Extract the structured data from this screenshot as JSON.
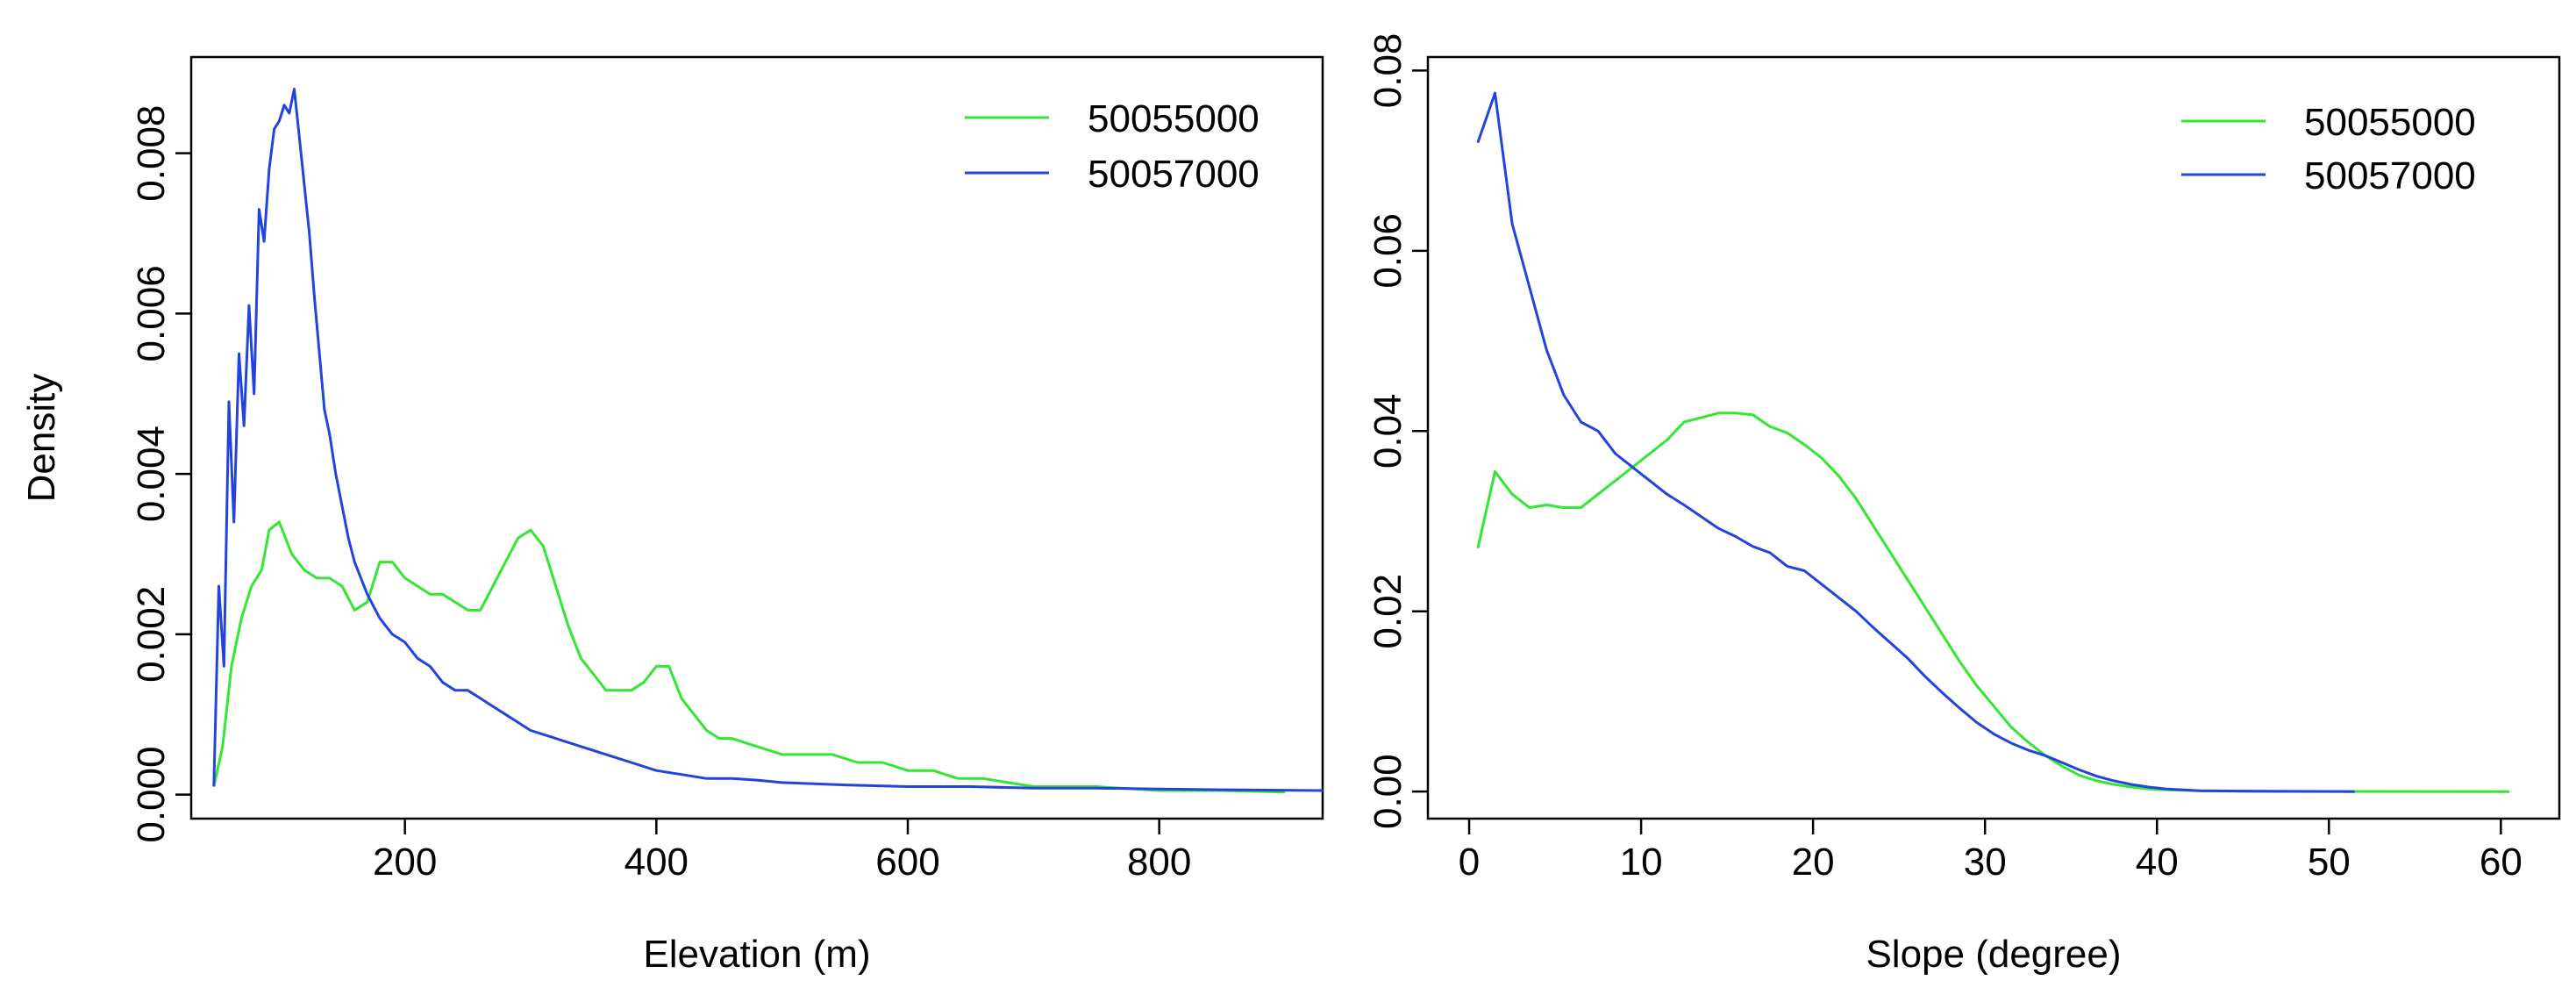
{
  "colors": {
    "green_series": "#33e633",
    "blue_series": "#2244dd",
    "axis": "#000000"
  },
  "chart_data": [
    {
      "type": "line",
      "title": "",
      "xlabel": "Elevation (m)",
      "ylabel": "Density",
      "xlim": [
        30,
        930
      ],
      "ylim": [
        -0.0003,
        0.0092
      ],
      "x_ticks": [
        200,
        400,
        600,
        800
      ],
      "x_tick_labels": [
        "200",
        "400",
        "600",
        "800"
      ],
      "y_ticks": [
        0,
        0.002,
        0.004,
        0.006,
        0.008
      ],
      "y_tick_labels": [
        "0.000",
        "0.002",
        "0.004",
        "0.006",
        "0.008"
      ],
      "legend_position": "top-right",
      "series": [
        {
          "name": "50055000",
          "color": "#33e633",
          "x": [
            48,
            55,
            62,
            70,
            78,
            86,
            92,
            100,
            110,
            120,
            130,
            140,
            150,
            160,
            170,
            180,
            190,
            200,
            210,
            220,
            230,
            240,
            250,
            260,
            270,
            280,
            290,
            300,
            310,
            320,
            330,
            340,
            350,
            360,
            370,
            380,
            390,
            400,
            410,
            420,
            430,
            440,
            450,
            460,
            480,
            500,
            520,
            540,
            560,
            580,
            600,
            620,
            640,
            660,
            680,
            700,
            720,
            750,
            800,
            850,
            900
          ],
          "y": [
            0.0001,
            0.0006,
            0.0016,
            0.0022,
            0.0026,
            0.0028,
            0.0033,
            0.0034,
            0.003,
            0.0028,
            0.0027,
            0.0027,
            0.0026,
            0.0023,
            0.0024,
            0.0029,
            0.0029,
            0.0027,
            0.0026,
            0.0025,
            0.0025,
            0.0024,
            0.0023,
            0.0023,
            0.0026,
            0.0029,
            0.0032,
            0.0033,
            0.0031,
            0.0026,
            0.0021,
            0.0017,
            0.0015,
            0.0013,
            0.0013,
            0.0013,
            0.0014,
            0.0016,
            0.0016,
            0.0012,
            0.001,
            0.0008,
            0.0007,
            0.0007,
            0.0006,
            0.0005,
            0.0005,
            0.0005,
            0.0004,
            0.0004,
            0.0003,
            0.0003,
            0.0002,
            0.0002,
            0.00015,
            0.0001,
            0.0001,
            0.0001,
            5e-05,
            5e-05,
            3e-05
          ]
        },
        {
          "name": "50057000",
          "color": "#2244dd",
          "x": [
            48,
            52,
            56,
            60,
            64,
            68,
            72,
            76,
            80,
            84,
            88,
            92,
            96,
            100,
            104,
            108,
            112,
            116,
            120,
            124,
            128,
            132,
            136,
            140,
            145,
            150,
            155,
            160,
            170,
            180,
            190,
            200,
            210,
            220,
            230,
            240,
            250,
            260,
            270,
            280,
            290,
            300,
            320,
            340,
            360,
            380,
            400,
            420,
            440,
            460,
            480,
            500,
            550,
            600,
            650,
            700,
            750,
            800,
            850,
            930
          ],
          "y": [
            0.0001,
            0.0026,
            0.0016,
            0.0049,
            0.0034,
            0.0055,
            0.0046,
            0.0061,
            0.005,
            0.0073,
            0.0069,
            0.0078,
            0.0083,
            0.0084,
            0.0086,
            0.0085,
            0.0088,
            0.0082,
            0.0076,
            0.007,
            0.0062,
            0.0055,
            0.0048,
            0.0045,
            0.004,
            0.0036,
            0.0032,
            0.0029,
            0.0025,
            0.0022,
            0.002,
            0.0019,
            0.0017,
            0.0016,
            0.0014,
            0.0013,
            0.0013,
            0.0012,
            0.0011,
            0.001,
            0.0009,
            0.0008,
            0.0007,
            0.0006,
            0.0005,
            0.0004,
            0.0003,
            0.00025,
            0.0002,
            0.0002,
            0.00018,
            0.00015,
            0.00012,
            0.0001,
            0.0001,
            8e-05,
            8e-05,
            7e-05,
            6e-05,
            5e-05
          ]
        }
      ]
    },
    {
      "type": "line",
      "title": "",
      "xlabel": "Slope (degree)",
      "ylabel": "",
      "xlim": [
        -2.4,
        63.4
      ],
      "ylim": [
        -0.003,
        0.0815
      ],
      "x_ticks": [
        0,
        10,
        20,
        30,
        40,
        50,
        60
      ],
      "x_tick_labels": [
        "0",
        "10",
        "20",
        "30",
        "40",
        "50",
        "60"
      ],
      "y_ticks": [
        0,
        0.02,
        0.04,
        0.06,
        0.08
      ],
      "y_tick_labels": [
        "0.00",
        "0.02",
        "0.04",
        "0.06",
        "0.08"
      ],
      "legend_position": "top-right",
      "series": [
        {
          "name": "50055000",
          "color": "#33e633",
          "x": [
            0.5,
            1.5,
            2.5,
            3.5,
            4.5,
            5.5,
            6.5,
            7.5,
            8.5,
            9.5,
            10.5,
            11.5,
            12.5,
            13.5,
            14.5,
            15.5,
            16.5,
            17.5,
            18.5,
            19.5,
            20.5,
            21.5,
            22.5,
            23.5,
            24.5,
            25.5,
            26.5,
            27.5,
            28.5,
            29.5,
            30.5,
            31.5,
            32.5,
            33.5,
            34.5,
            35.5,
            36.5,
            37.5,
            38.5,
            39.5,
            40.5,
            42.5,
            45.5,
            50.5,
            55.5,
            60.5
          ],
          "y": [
            0.027,
            0.0355,
            0.033,
            0.0315,
            0.0318,
            0.0315,
            0.0315,
            0.033,
            0.0345,
            0.036,
            0.0375,
            0.039,
            0.041,
            0.0415,
            0.042,
            0.042,
            0.0418,
            0.0405,
            0.0398,
            0.0385,
            0.037,
            0.035,
            0.0325,
            0.0295,
            0.0265,
            0.0235,
            0.0205,
            0.0175,
            0.0145,
            0.0118,
            0.0095,
            0.0072,
            0.0055,
            0.004,
            0.0028,
            0.0018,
            0.0012,
            0.0008,
            0.0005,
            0.0003,
            0.0002,
            0.0001,
            5e-05,
            2e-05,
            1e-05,
            0.0
          ]
        },
        {
          "name": "50057000",
          "color": "#2244dd",
          "x": [
            0.5,
            1.5,
            2.5,
            3.5,
            4.5,
            5.5,
            6.5,
            7.5,
            8.5,
            9.5,
            10.5,
            11.5,
            12.5,
            13.5,
            14.5,
            15.5,
            16.5,
            17.5,
            18.5,
            19.5,
            20.5,
            21.5,
            22.5,
            23.5,
            24.5,
            25.5,
            26.5,
            27.5,
            28.5,
            29.5,
            30.5,
            31.5,
            32.5,
            33.5,
            34.5,
            35.5,
            36.5,
            37.5,
            38.5,
            39.5,
            40.5,
            42.5,
            45.5,
            48.5,
            51.5
          ],
          "y": [
            0.072,
            0.0775,
            0.063,
            0.056,
            0.049,
            0.044,
            0.041,
            0.04,
            0.0375,
            0.036,
            0.0345,
            0.033,
            0.0318,
            0.0305,
            0.0292,
            0.0283,
            0.0272,
            0.0265,
            0.025,
            0.0245,
            0.023,
            0.0215,
            0.02,
            0.0182,
            0.0165,
            0.0148,
            0.0128,
            0.011,
            0.0093,
            0.0077,
            0.0064,
            0.0054,
            0.0046,
            0.004,
            0.0032,
            0.0024,
            0.0017,
            0.0012,
            0.0008,
            0.0005,
            0.0003,
            0.0001,
            5e-05,
            2e-05,
            0.0
          ]
        }
      ]
    }
  ]
}
